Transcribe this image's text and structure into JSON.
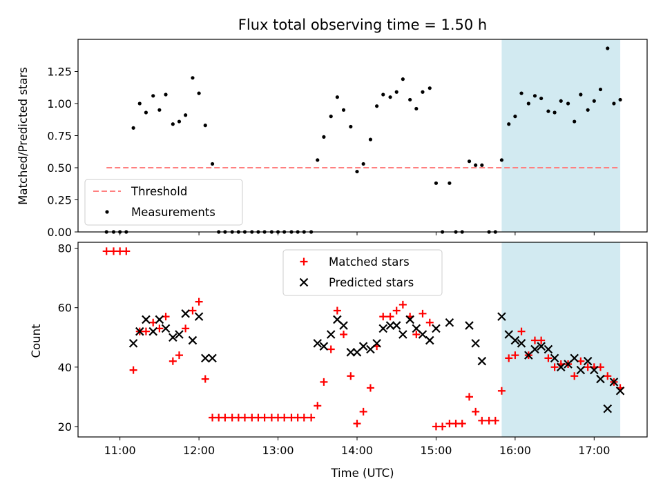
{
  "chart_data": [
    {
      "type": "scatter",
      "title": "Flux total observing time = 1.50 h",
      "xlabel": "",
      "ylabel": "Matched/Predicted stars",
      "ylim": [
        0,
        1.5
      ],
      "xlim_hours": [
        10.47,
        17.67
      ],
      "y_ticks": [
        0.0,
        0.25,
        0.5,
        0.75,
        1.0,
        1.25
      ],
      "y_tick_labels": [
        "0.00",
        "0.25",
        "0.50",
        "0.75",
        "1.00",
        "1.25"
      ],
      "highlight_span_hours": [
        15.83,
        17.33
      ],
      "highlight_color": "#add8e6",
      "threshold": {
        "name": "Threshold",
        "value": 0.5,
        "x_range_hours": [
          10.83,
          17.33
        ],
        "color": "#ff8080",
        "style": "dashed"
      },
      "legend": {
        "placement": "lower-left",
        "entries": [
          "Threshold",
          "Measurements"
        ]
      },
      "series": [
        {
          "name": "Measurements",
          "color": "#000000",
          "x_hours": [
            10.83,
            10.92,
            11.0,
            11.08,
            11.17,
            11.25,
            11.33,
            11.42,
            11.5,
            11.58,
            11.67,
            11.75,
            11.83,
            11.92,
            12.0,
            12.08,
            12.17,
            12.25,
            12.33,
            12.42,
            12.5,
            12.58,
            12.67,
            12.75,
            12.83,
            12.92,
            13.0,
            13.08,
            13.17,
            13.25,
            13.33,
            13.42,
            13.5,
            13.58,
            13.67,
            13.75,
            13.83,
            13.92,
            14.0,
            14.08,
            14.17,
            14.25,
            14.33,
            14.42,
            14.5,
            14.58,
            14.67,
            14.75,
            14.83,
            14.92,
            15.0,
            15.08,
            15.17,
            15.25,
            15.33,
            15.42,
            15.5,
            15.58,
            15.67,
            15.75,
            15.83,
            15.92,
            16.0,
            16.08,
            16.17,
            16.25,
            16.33,
            16.42,
            16.5,
            16.58,
            16.67,
            16.75,
            16.83,
            16.92,
            17.0,
            17.08,
            17.17,
            17.25,
            17.33
          ],
          "values": [
            0.0,
            0.0,
            0.0,
            0.0,
            0.81,
            1.0,
            0.93,
            1.06,
            0.95,
            1.07,
            0.84,
            0.86,
            0.91,
            1.2,
            1.08,
            0.83,
            0.53,
            0.0,
            0.0,
            0.0,
            0.0,
            0.0,
            0.0,
            0.0,
            0.0,
            0.0,
            0.0,
            0.0,
            0.0,
            0.0,
            0.0,
            0.0,
            0.56,
            0.74,
            0.9,
            1.05,
            0.95,
            0.82,
            0.47,
            0.53,
            0.72,
            0.98,
            1.07,
            1.05,
            1.09,
            1.19,
            1.03,
            0.96,
            1.09,
            1.12,
            0.38,
            0.0,
            0.38,
            0.0,
            0.0,
            0.55,
            0.52,
            0.52,
            0.0,
            0.0,
            0.56,
            0.84,
            0.9,
            1.08,
            1.0,
            1.06,
            1.04,
            0.94,
            0.93,
            1.02,
            1.0,
            0.86,
            1.07,
            0.95,
            1.02,
            1.11,
            1.43,
            1.0,
            1.03
          ]
        }
      ]
    },
    {
      "type": "scatter",
      "title": "",
      "xlabel": "Time (UTC)",
      "ylabel": "Count",
      "ylim": [
        16.5,
        82
      ],
      "xlim_hours": [
        10.47,
        17.67
      ],
      "y_ticks": [
        20,
        40,
        60,
        80
      ],
      "y_tick_labels": [
        "20",
        "40",
        "60",
        "80"
      ],
      "x_ticks_hours": [
        11,
        12,
        13,
        14,
        15,
        16,
        17
      ],
      "x_tick_labels": [
        "11:00",
        "12:00",
        "13:00",
        "14:00",
        "15:00",
        "16:00",
        "17:00"
      ],
      "highlight_span_hours": [
        15.83,
        17.33
      ],
      "highlight_color": "#add8e6",
      "legend": {
        "placement": "upper-center",
        "entries": [
          "Matched stars",
          "Predicted stars"
        ]
      },
      "series": [
        {
          "name": "Matched stars",
          "marker": "plus",
          "color": "#ff0000",
          "x_hours": [
            10.83,
            10.92,
            11.0,
            11.08,
            11.17,
            11.25,
            11.33,
            11.42,
            11.5,
            11.58,
            11.67,
            11.75,
            11.83,
            11.92,
            12.0,
            12.08,
            12.17,
            12.25,
            12.33,
            12.42,
            12.5,
            12.58,
            12.67,
            12.75,
            12.83,
            12.92,
            13.0,
            13.08,
            13.17,
            13.25,
            13.33,
            13.42,
            13.5,
            13.58,
            13.67,
            13.75,
            13.83,
            13.92,
            14.0,
            14.08,
            14.17,
            14.25,
            14.33,
            14.42,
            14.5,
            14.58,
            14.67,
            14.75,
            14.83,
            14.92,
            15.0,
            15.08,
            15.17,
            15.25,
            15.33,
            15.42,
            15.5,
            15.58,
            15.67,
            15.75,
            15.83,
            15.92,
            16.0,
            16.08,
            16.17,
            16.25,
            16.33,
            16.42,
            16.5,
            16.58,
            16.67,
            16.75,
            16.83,
            16.92,
            17.0,
            17.08,
            17.17,
            17.25,
            17.33
          ],
          "values": [
            79,
            79,
            79,
            79,
            39,
            52,
            52,
            55,
            53,
            57,
            42,
            44,
            53,
            59,
            62,
            36,
            23,
            23,
            23,
            23,
            23,
            23,
            23,
            23,
            23,
            23,
            23,
            23,
            23,
            23,
            23,
            23,
            27,
            35,
            46,
            59,
            51,
            37,
            21,
            25,
            33,
            47,
            57,
            57,
            59,
            61,
            57,
            51,
            58,
            55,
            20,
            20,
            21,
            21,
            21,
            30,
            25,
            22,
            22,
            22,
            32,
            43,
            44,
            52,
            44,
            49,
            49,
            43,
            40,
            41,
            41,
            37,
            42,
            40,
            40,
            40,
            37,
            35,
            33
          ]
        },
        {
          "name": "Predicted stars",
          "marker": "x",
          "color": "#000000",
          "x_hours": [
            11.17,
            11.25,
            11.33,
            11.42,
            11.5,
            11.58,
            11.67,
            11.75,
            11.83,
            11.92,
            12.0,
            12.08,
            12.17,
            13.5,
            13.58,
            13.67,
            13.75,
            13.83,
            13.92,
            14.0,
            14.08,
            14.17,
            14.25,
            14.33,
            14.42,
            14.5,
            14.58,
            14.67,
            14.75,
            14.83,
            14.92,
            15.0,
            15.17,
            15.42,
            15.5,
            15.58,
            15.83,
            15.92,
            16.0,
            16.08,
            16.17,
            16.25,
            16.33,
            16.42,
            16.5,
            16.58,
            16.67,
            16.75,
            16.83,
            16.92,
            17.0,
            17.08,
            17.17,
            17.25,
            17.33
          ],
          "values": [
            48,
            52,
            56,
            52,
            56,
            53,
            50,
            51,
            58,
            49,
            57,
            43,
            43,
            48,
            47,
            51,
            56,
            54,
            45,
            45,
            47,
            46,
            48,
            53,
            54,
            54,
            51,
            56,
            53,
            51,
            49,
            53,
            55,
            54,
            48,
            42,
            57,
            51,
            49,
            48,
            44,
            46,
            47,
            46,
            43,
            40,
            41,
            43,
            39,
            42,
            39,
            36,
            26,
            35,
            32
          ]
        }
      ]
    }
  ]
}
